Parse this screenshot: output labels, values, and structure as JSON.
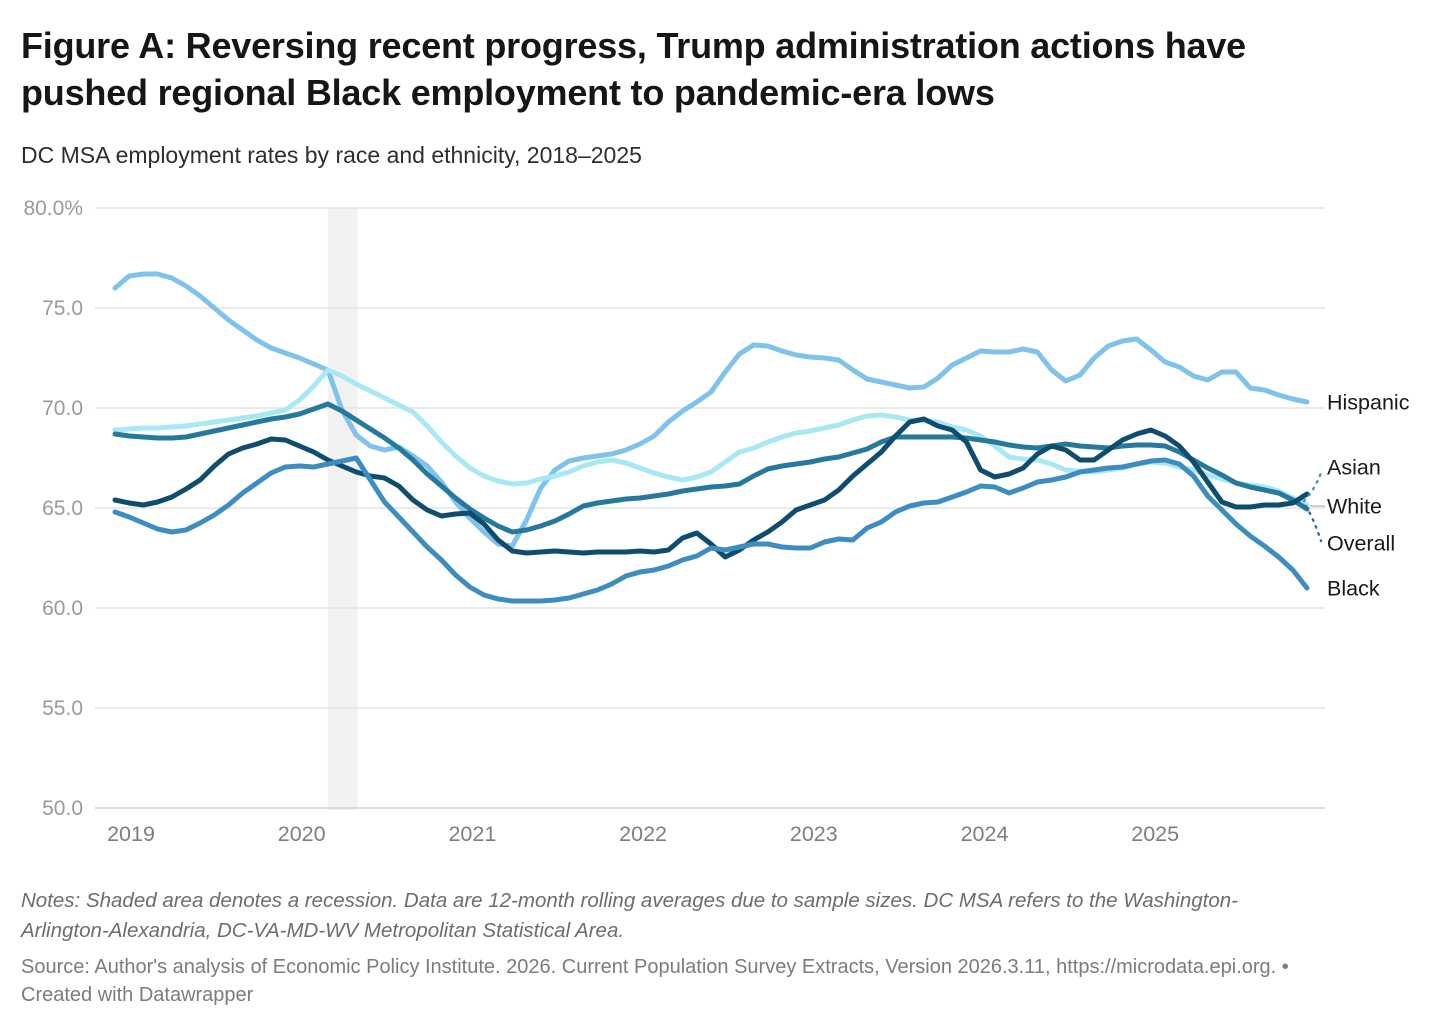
{
  "header": {
    "title": "Figure A: Reversing recent progress, Trump administration actions have pushed regional Black employment to pandemic-era lows",
    "subtitle": "DC MSA employment rates by race and ethnicity, 2018–2025"
  },
  "chart_data": {
    "type": "line",
    "title": "DC MSA employment rates by race and ethnicity, 2018–2025",
    "unit": "percent",
    "ylim": [
      50,
      80
    ],
    "grid": "horizontal",
    "legend_position": "right-edge-direct-labels",
    "x_range": {
      "start": "2018-12",
      "end": "2025-12",
      "frequency": "monthly"
    },
    "x_tick_labels": [
      "2019",
      "2020",
      "2021",
      "2022",
      "2023",
      "2024",
      "2025"
    ],
    "y_ticks": [
      {
        "label": "80.0%",
        "value": 80
      },
      {
        "label": "75.0",
        "value": 75
      },
      {
        "label": "70.0",
        "value": 70
      },
      {
        "label": "65.0",
        "value": 65
      },
      {
        "label": "60.0",
        "value": 60
      },
      {
        "label": "55.0",
        "value": 55
      },
      {
        "label": "50.0",
        "value": 50
      }
    ],
    "recession_band": {
      "start": "2020-03",
      "end": "2020-05",
      "month_index_start": 15.0,
      "month_index_end": 17.1
    },
    "series": [
      {
        "name": "Hispanic",
        "color": "#7fc2eb",
        "values": [
          76.0,
          76.6,
          76.7,
          76.7,
          76.5,
          76.1,
          75.6,
          75.0,
          74.4,
          73.9,
          73.4,
          73.0,
          72.75,
          72.5,
          72.2,
          71.9,
          69.9,
          68.65,
          68.1,
          67.9,
          68.05,
          67.6,
          67.1,
          66.3,
          65.3,
          64.5,
          63.8,
          63.2,
          63.1,
          64.4,
          66.0,
          66.9,
          67.35,
          67.5,
          67.6,
          67.7,
          67.9,
          68.2,
          68.6,
          69.3,
          69.85,
          70.3,
          70.8,
          71.8,
          72.7,
          73.15,
          73.1,
          72.85,
          72.65,
          72.55,
          72.5,
          72.4,
          71.9,
          71.45,
          71.3,
          71.15,
          71.0,
          71.05,
          71.5,
          72.15,
          72.5,
          72.85,
          72.8,
          72.8,
          72.95,
          72.8,
          71.9,
          71.35,
          71.65,
          72.5,
          73.1,
          73.35,
          73.45,
          72.9,
          72.3,
          72.05,
          71.6,
          71.4,
          71.8,
          71.8,
          71.0,
          70.9,
          70.65,
          70.45,
          70.3
        ]
      },
      {
        "name": "Asian",
        "color": "#a8e8f5",
        "values": [
          68.9,
          68.95,
          69.0,
          69.0,
          69.05,
          69.1,
          69.2,
          69.3,
          69.4,
          69.5,
          69.6,
          69.75,
          69.9,
          70.4,
          71.1,
          71.9,
          71.6,
          71.2,
          70.85,
          70.5,
          70.15,
          69.8,
          69.1,
          68.3,
          67.6,
          67.0,
          66.6,
          66.35,
          66.2,
          66.25,
          66.45,
          66.6,
          66.8,
          67.1,
          67.3,
          67.4,
          67.25,
          67.0,
          66.75,
          66.55,
          66.4,
          66.55,
          66.8,
          67.3,
          67.8,
          68.0,
          68.3,
          68.55,
          68.75,
          68.85,
          69.0,
          69.15,
          69.4,
          69.6,
          69.65,
          69.55,
          69.4,
          69.35,
          69.3,
          69.05,
          68.9,
          68.6,
          68.1,
          67.55,
          67.45,
          67.4,
          67.2,
          66.9,
          66.85,
          66.8,
          66.9,
          67.0,
          67.2,
          67.3,
          67.25,
          67.05,
          66.9,
          66.65,
          66.45,
          66.25,
          66.15,
          66.05,
          65.85,
          65.5,
          65.15
        ]
      },
      {
        "name": "White",
        "color": "#26799d",
        "values": [
          68.7,
          68.6,
          68.55,
          68.5,
          68.5,
          68.55,
          68.7,
          68.85,
          69.0,
          69.15,
          69.3,
          69.45,
          69.55,
          69.7,
          69.95,
          70.2,
          69.85,
          69.4,
          68.95,
          68.5,
          68.0,
          67.4,
          66.7,
          66.1,
          65.5,
          64.95,
          64.5,
          64.1,
          63.8,
          63.9,
          64.1,
          64.35,
          64.7,
          65.1,
          65.25,
          65.35,
          65.45,
          65.5,
          65.6,
          65.7,
          65.85,
          65.95,
          66.05,
          66.1,
          66.2,
          66.6,
          66.95,
          67.1,
          67.2,
          67.3,
          67.45,
          67.55,
          67.75,
          67.95,
          68.3,
          68.55,
          68.55,
          68.55,
          68.55,
          68.55,
          68.5,
          68.4,
          68.3,
          68.15,
          68.05,
          68.0,
          68.1,
          68.2,
          68.1,
          68.05,
          68.0,
          68.1,
          68.15,
          68.15,
          68.1,
          67.8,
          67.4,
          67.0,
          66.65,
          66.25,
          66.05,
          65.9,
          65.75,
          65.4,
          64.95
        ]
      },
      {
        "name": "Overall",
        "color": "#0e4d6d",
        "values": [
          65.4,
          65.25,
          65.15,
          65.3,
          65.55,
          65.95,
          66.4,
          67.1,
          67.7,
          68.0,
          68.2,
          68.45,
          68.4,
          68.1,
          67.8,
          67.4,
          67.1,
          66.8,
          66.6,
          66.5,
          66.1,
          65.4,
          64.9,
          64.6,
          64.7,
          64.75,
          64.2,
          63.4,
          62.85,
          62.75,
          62.8,
          62.85,
          62.8,
          62.75,
          62.8,
          62.8,
          62.8,
          62.85,
          62.8,
          62.9,
          63.5,
          63.75,
          63.2,
          62.55,
          62.9,
          63.4,
          63.8,
          64.3,
          64.9,
          65.15,
          65.4,
          65.9,
          66.6,
          67.2,
          67.8,
          68.6,
          69.3,
          69.45,
          69.1,
          68.9,
          68.3,
          66.9,
          66.55,
          66.7,
          67.0,
          67.7,
          68.1,
          67.9,
          67.4,
          67.4,
          67.9,
          68.4,
          68.7,
          68.9,
          68.6,
          68.1,
          67.3,
          66.3,
          65.3,
          65.05,
          65.05,
          65.15,
          65.15,
          65.25,
          65.7
        ]
      },
      {
        "name": "Black",
        "color": "#3e8dc1",
        "values": [
          64.8,
          64.55,
          64.25,
          63.95,
          63.8,
          63.9,
          64.25,
          64.65,
          65.15,
          65.75,
          66.25,
          66.75,
          67.05,
          67.1,
          67.05,
          67.2,
          67.35,
          67.5,
          66.4,
          65.3,
          64.55,
          63.8,
          63.05,
          62.4,
          61.65,
          61.05,
          60.65,
          60.45,
          60.35,
          60.35,
          60.35,
          60.4,
          60.5,
          60.7,
          60.9,
          61.2,
          61.6,
          61.8,
          61.9,
          62.1,
          62.4,
          62.6,
          63.0,
          62.9,
          63.05,
          63.2,
          63.2,
          63.05,
          63.0,
          63.0,
          63.3,
          63.45,
          63.4,
          64.0,
          64.3,
          64.8,
          65.1,
          65.25,
          65.3,
          65.55,
          65.8,
          66.1,
          66.05,
          65.75,
          66.0,
          66.3,
          66.4,
          66.55,
          66.8,
          66.9,
          67.0,
          67.05,
          67.2,
          67.35,
          67.4,
          67.2,
          66.6,
          65.6,
          64.9,
          64.2,
          63.6,
          63.1,
          62.55,
          61.9,
          61.0
        ]
      }
    ],
    "colors": {
      "gridline": "#e4e4e4",
      "axis_baseline": "#d2d2d2",
      "recession_band": "#f2f2f2",
      "y_tick_label": "#9a9a9a",
      "x_tick_label": "#7e7e7e",
      "series_label": "#1a1a1a",
      "connector_gray": "#cfcfcf",
      "connector_asian": "#4e93b3",
      "connector_overall": "#2f7396"
    }
  },
  "notes": {
    "lines": [
      "Notes: Shaded area denotes a recession. Data are 12-month rolling averages due to sample sizes. DC MSA refers to the Washington-",
      "Arlington-Alexandria, DC-VA-MD-WV Metropolitan Statistical Area."
    ]
  },
  "source": {
    "lines": [
      "Source: Author's analysis of Economic Policy Institute. 2026. Current Population Survey Extracts, Version 2026.3.11, https://microdata.epi.org. •",
      "Created with Datawrapper"
    ]
  }
}
